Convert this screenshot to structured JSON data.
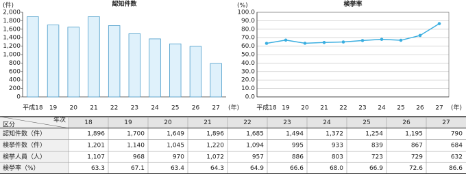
{
  "chart_data": [
    {
      "type": "bar",
      "title": "認知件数",
      "y_label": "(件)",
      "x_unit": "(年)",
      "categories": [
        "平成18",
        "19",
        "20",
        "21",
        "22",
        "23",
        "24",
        "25",
        "26",
        "27"
      ],
      "values": [
        1896,
        1700,
        1649,
        1896,
        1685,
        1494,
        1372,
        1254,
        1195,
        790
      ],
      "color": "#dff1fb",
      "edge_color": "#4a9cc9",
      "ylim": [
        0,
        2000
      ],
      "yticks": [
        0,
        200,
        400,
        600,
        800,
        {
          "value": 1000,
          "label": "1,000"
        },
        {
          "value": 1200,
          "label": "1,200"
        },
        {
          "value": 1400,
          "label": "1,400"
        },
        {
          "value": 1600,
          "label": "1,600"
        },
        {
          "value": 1800,
          "label": "1,800"
        },
        {
          "value": 2000,
          "label": "2,000"
        }
      ],
      "grid": false
    },
    {
      "type": "line",
      "title": "検挙率",
      "y_label": "(%)",
      "x_unit": "(年)",
      "categories": [
        "平成18",
        "19",
        "20",
        "21",
        "22",
        "23",
        "24",
        "25",
        "26",
        "27"
      ],
      "values": [
        63.3,
        67.1,
        63.4,
        64.3,
        64.9,
        66.6,
        68.0,
        66.9,
        72.6,
        86.6
      ],
      "color": "#3aaee0",
      "ylim": [
        0,
        100
      ],
      "yticks": [
        {
          "value": 0,
          "label": "0.0"
        },
        {
          "value": 10,
          "label": "10.0"
        },
        {
          "value": 20,
          "label": "20.0"
        },
        {
          "value": 30,
          "label": "30.0"
        },
        {
          "value": 40,
          "label": "40.0"
        },
        {
          "value": 50,
          "label": "50.0"
        },
        {
          "value": 60,
          "label": "60.0"
        },
        {
          "value": 70,
          "label": "70.0"
        },
        {
          "value": 80,
          "label": "80.0"
        },
        {
          "value": 90,
          "label": "90.0"
        },
        {
          "value": 100,
          "label": "100.0"
        }
      ],
      "grid": true
    }
  ],
  "table": {
    "corner_top": "年次",
    "corner_bottom": "区分",
    "columns": [
      "18",
      "19",
      "20",
      "21",
      "22",
      "23",
      "24",
      "25",
      "26",
      "27"
    ],
    "rows": [
      {
        "label": "認知件数（件）",
        "cells": [
          "1,896",
          "1,700",
          "1,649",
          "1,896",
          "1,685",
          "1,494",
          "1,372",
          "1,254",
          "1,195",
          "790"
        ]
      },
      {
        "label": "検挙件数（件）",
        "cells": [
          "1,201",
          "1,140",
          "1,045",
          "1,220",
          "1,094",
          "995",
          "933",
          "839",
          "867",
          "684"
        ]
      },
      {
        "label": "検挙人員（人）",
        "cells": [
          "1,107",
          "968",
          "970",
          "1,072",
          "957",
          "886",
          "803",
          "723",
          "729",
          "632"
        ]
      },
      {
        "label": "検挙率（%）",
        "cells": [
          "63.3",
          "67.1",
          "63.4",
          "64.3",
          "64.9",
          "66.6",
          "68.0",
          "66.9",
          "72.6",
          "86.6"
        ]
      }
    ]
  }
}
